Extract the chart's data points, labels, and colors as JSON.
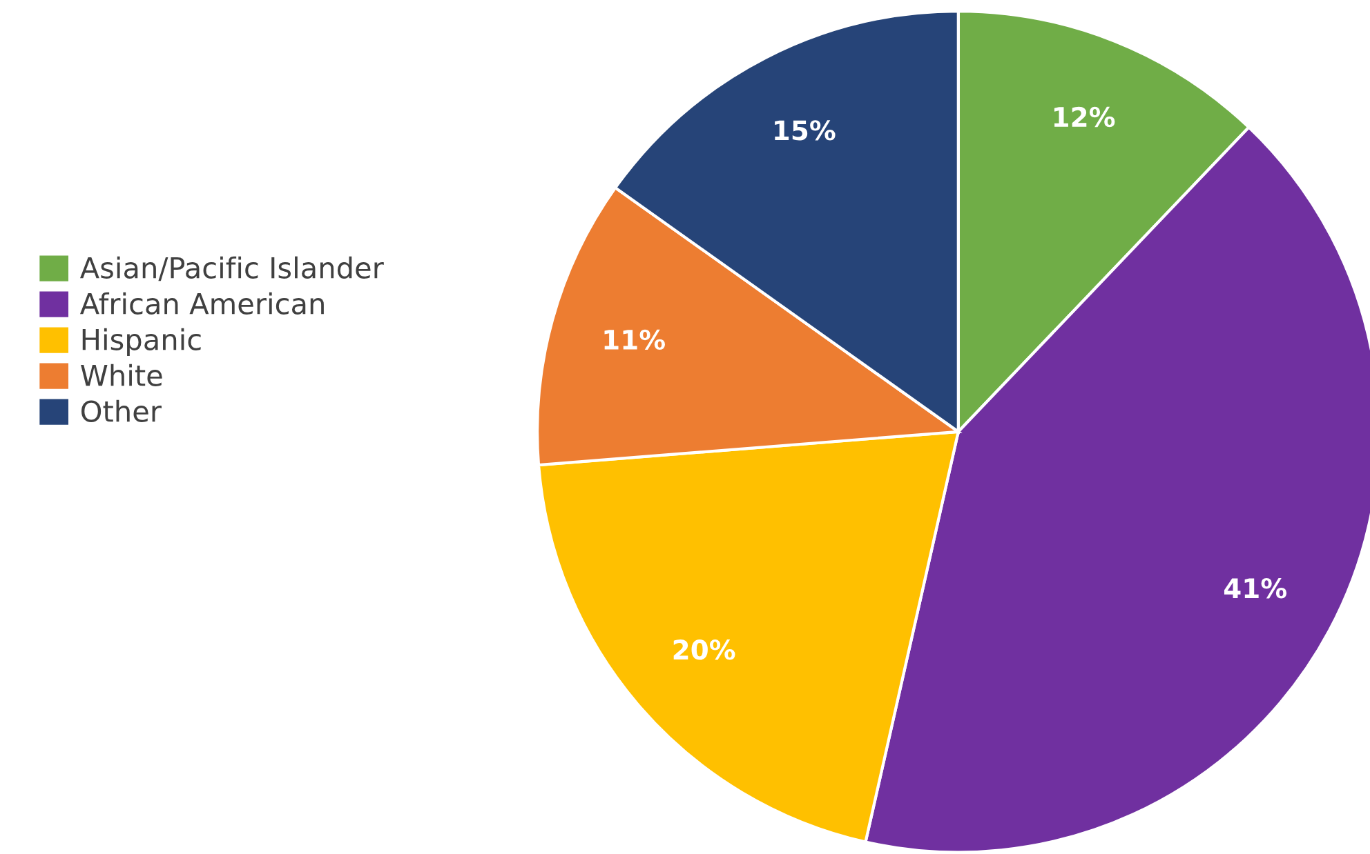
{
  "chart_data": {
    "type": "pie",
    "categories": [
      "Asian/Pacific Islander",
      "African American",
      "Hispanic",
      "White",
      "Other"
    ],
    "values": [
      12,
      41,
      20,
      11,
      15
    ],
    "value_labels": [
      "12%",
      "41%",
      "20%",
      "11%",
      "15%"
    ],
    "colors": [
      "#70ad47",
      "#7030a0",
      "#ffc000",
      "#ed7d31",
      "#264478"
    ],
    "legend": "left"
  }
}
